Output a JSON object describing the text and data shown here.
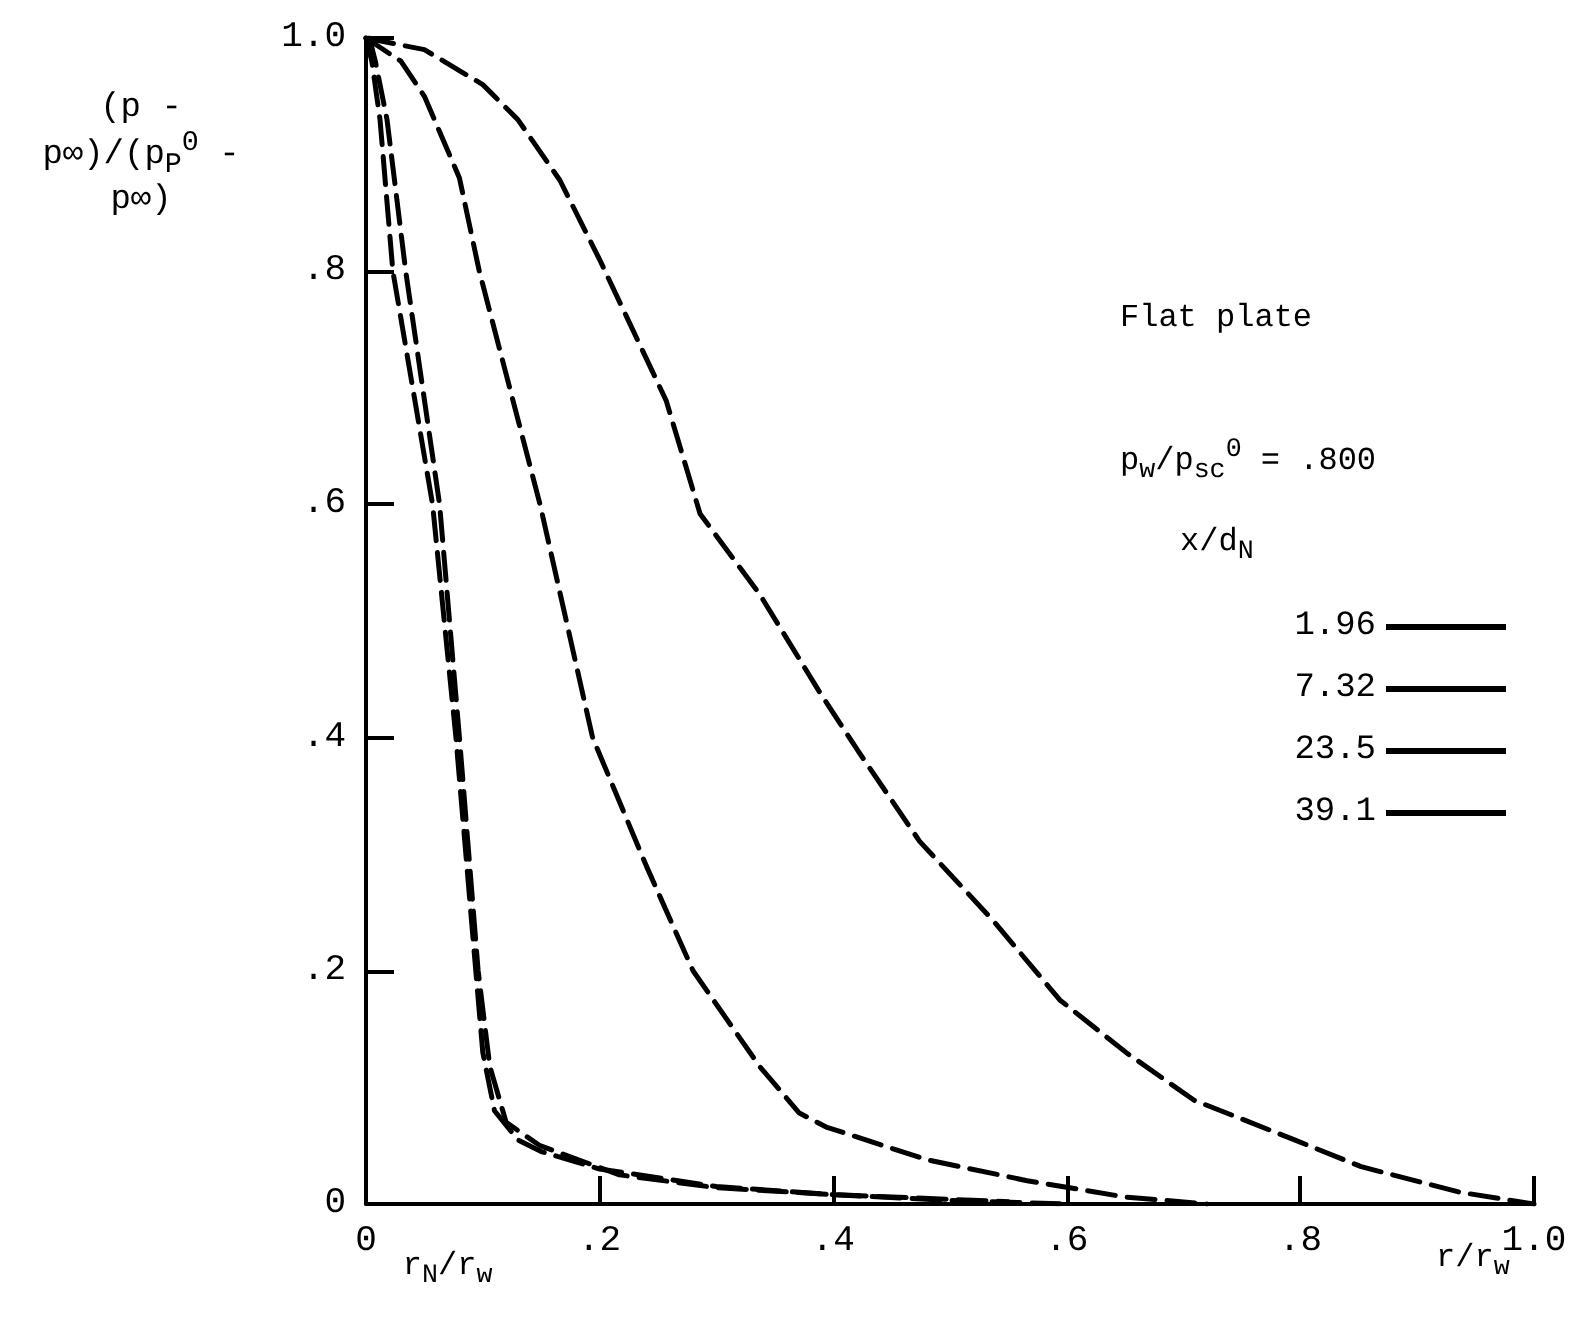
{
  "chart_data": {
    "type": "line",
    "ylabel": "(p - p∞)/(p$_{P}$$^{0}$ - p∞)",
    "xlabel": "r/r$_{w}$",
    "legend_title": "x/d$_{N}$",
    "annotations": [
      "Flat plate",
      "p$_{w}$/p$_{sc}$$^{0}$ = .800",
      "r$_{N}$/r$_{w}$"
    ],
    "xlim": [
      0,
      1
    ],
    "ylim": [
      0,
      1
    ],
    "xticks": [
      0,
      {
        "value": 0.2,
        "label": ".2"
      },
      {
        "value": 0.4,
        "label": ".4"
      },
      {
        "value": 0.6,
        "label": ".6"
      },
      {
        "value": 0.8,
        "label": ".8"
      },
      {
        "value": 1,
        "label": "1.0"
      }
    ],
    "yticks": [
      0,
      {
        "value": 0.2,
        "label": ".2"
      },
      {
        "value": 0.4,
        "label": ".4"
      },
      {
        "value": 0.6,
        "label": ".6"
      },
      {
        "value": 0.8,
        "label": ".8"
      },
      {
        "value": 1,
        "label": "1.0"
      }
    ],
    "grid": false,
    "legend": "right",
    "marker": "none",
    "series": [
      {
        "name": "1.96",
        "color": "#000000",
        "line_style": "dashed",
        "x": [
          0,
          0.005,
          0.012,
          0.023,
          0.04,
          0.057,
          0.077,
          0.094,
          0.1,
          0.11,
          0.13,
          0.15,
          0.2,
          0.3,
          0.4,
          0.5,
          0.6
        ],
        "values": [
          1,
          0.98,
          0.93,
          0.8,
          0.7,
          0.6,
          0.4,
          0.2,
          0.13,
          0.08,
          0.055,
          0.045,
          0.03,
          0.015,
          0.008,
          0.003,
          0
        ]
      },
      {
        "name": "7.32",
        "color": "#000000",
        "line_style": "dashed",
        "x": [
          0.003,
          0.008,
          0.018,
          0.034,
          0.063,
          0.08,
          0.096,
          0.106,
          0.12,
          0.149,
          0.217,
          0.3,
          0.4,
          0.55
        ],
        "values": [
          1,
          0.98,
          0.93,
          0.8,
          0.6,
          0.4,
          0.2,
          0.118,
          0.07,
          0.05,
          0.025,
          0.014,
          0.008,
          0.002
        ]
      },
      {
        "name": "23.5",
        "color": "#000000",
        "line_style": "dashed",
        "x": [
          0,
          0.03,
          0.05,
          0.08,
          0.097,
          0.149,
          0.194,
          0.24,
          0.28,
          0.337,
          0.371,
          0.394,
          0.48,
          0.566,
          0.65,
          0.72
        ],
        "values": [
          1,
          0.98,
          0.95,
          0.88,
          0.8,
          0.6,
          0.4,
          0.29,
          0.2,
          0.118,
          0.078,
          0.066,
          0.038,
          0.02,
          0.006,
          0
        ]
      },
      {
        "name": "39.1",
        "color": "#000000",
        "line_style": "dashed",
        "x": [
          0,
          0.05,
          0.1,
          0.13,
          0.166,
          0.2,
          0.257,
          0.286,
          0.337,
          0.389,
          0.423,
          0.474,
          0.537,
          0.594,
          0.652,
          0.709,
          0.795,
          0.852,
          0.937,
          1.0
        ],
        "values": [
          1,
          0.99,
          0.96,
          0.93,
          0.878,
          0.81,
          0.689,
          0.592,
          0.523,
          0.438,
          0.386,
          0.311,
          0.243,
          0.175,
          0.129,
          0.089,
          0.055,
          0.032,
          0.01,
          0
        ]
      }
    ]
  }
}
